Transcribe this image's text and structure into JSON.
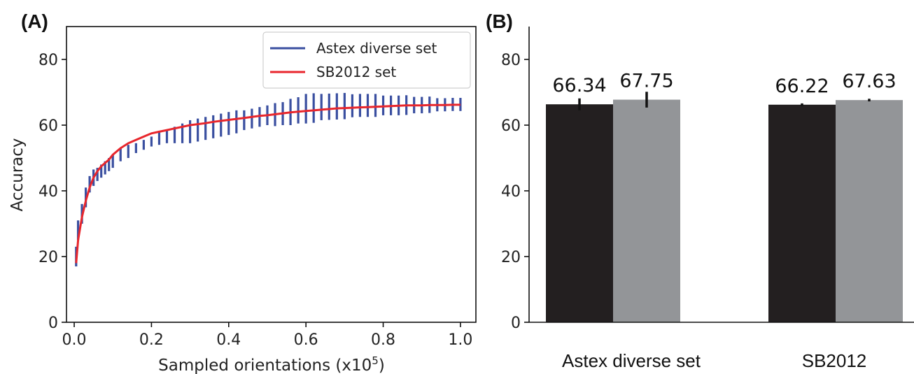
{
  "chart_data": [
    {
      "panel": "(A)",
      "type": "line",
      "xlabel": "Sampled orientations (x10",
      "xlabel_sup": "5",
      "xlabel_close": ")",
      "ylabel": "Accuracy",
      "xlim": [
        -0.02,
        1.04
      ],
      "ylim": [
        0,
        90
      ],
      "xticks": [
        "0.0",
        "0.2",
        "0.4",
        "0.6",
        "0.8",
        "1.0"
      ],
      "yticks": [
        "0",
        "20",
        "40",
        "60",
        "80"
      ],
      "grid": false,
      "legend_position": "top-right",
      "series": [
        {
          "name": "Astex diverse set",
          "color": "#3a4fa0",
          "style": "errorbar",
          "x": [
            0.005,
            0.01,
            0.02,
            0.03,
            0.04,
            0.05,
            0.06,
            0.07,
            0.08,
            0.09,
            0.1,
            0.12,
            0.14,
            0.16,
            0.18,
            0.2,
            0.22,
            0.24,
            0.26,
            0.28,
            0.3,
            0.32,
            0.34,
            0.36,
            0.38,
            0.4,
            0.42,
            0.44,
            0.46,
            0.48,
            0.5,
            0.52,
            0.54,
            0.56,
            0.58,
            0.6,
            0.62,
            0.64,
            0.66,
            0.68,
            0.7,
            0.72,
            0.74,
            0.76,
            0.78,
            0.8,
            0.82,
            0.84,
            0.86,
            0.88,
            0.9,
            0.92,
            0.94,
            0.96,
            0.98,
            1.0
          ],
          "y": [
            20,
            28,
            33,
            38,
            42,
            44,
            45,
            46,
            47,
            48,
            49,
            51,
            52,
            53,
            54,
            55,
            56,
            56.5,
            57,
            57.5,
            58,
            58.5,
            59,
            59.5,
            60,
            60.5,
            61,
            61.5,
            62,
            62.5,
            63,
            63.2,
            63.5,
            64,
            64.5,
            65,
            65.2,
            65.5,
            65.6,
            65.7,
            65.8,
            65.9,
            66,
            66,
            66,
            66,
            66,
            66,
            66.1,
            66.1,
            66.1,
            66.2,
            66.2,
            66.2,
            66.3,
            66.3
          ],
          "err": [
            3,
            3,
            3,
            3,
            2.5,
            2.5,
            2,
            2,
            2,
            2,
            2,
            2,
            2,
            1.5,
            1.5,
            1.5,
            2,
            2,
            2.5,
            3,
            3.5,
            3.5,
            3.5,
            3.5,
            3.5,
            3.5,
            3.5,
            3,
            3,
            3,
            3,
            3.5,
            3.5,
            4,
            4,
            4.5,
            4.5,
            4,
            4,
            4,
            4,
            3.5,
            3.5,
            3.5,
            3.5,
            3,
            3,
            3,
            3,
            2.5,
            2.5,
            2.5,
            2,
            2,
            2,
            2
          ]
        },
        {
          "name": "SB2012 set",
          "color": "#e8262c",
          "style": "line",
          "x": [
            0.005,
            0.01,
            0.02,
            0.03,
            0.04,
            0.05,
            0.06,
            0.07,
            0.08,
            0.09,
            0.1,
            0.12,
            0.14,
            0.16,
            0.18,
            0.2,
            0.22,
            0.24,
            0.26,
            0.28,
            0.3,
            0.32,
            0.34,
            0.36,
            0.38,
            0.4,
            0.42,
            0.44,
            0.46,
            0.48,
            0.5,
            0.52,
            0.54,
            0.56,
            0.58,
            0.6,
            0.62,
            0.64,
            0.66,
            0.68,
            0.7,
            0.72,
            0.74,
            0.76,
            0.78,
            0.8,
            0.82,
            0.84,
            0.86,
            0.88,
            0.9,
            0.92,
            0.94,
            0.96,
            0.98,
            1.0
          ],
          "y": [
            18,
            25,
            32,
            37,
            41,
            44,
            46,
            47.5,
            48.5,
            49.5,
            51,
            53,
            54.5,
            55.5,
            56.5,
            57.5,
            58,
            58.5,
            59,
            59.5,
            60,
            60.3,
            60.6,
            61,
            61.3,
            61.6,
            61.9,
            62.2,
            62.5,
            62.8,
            63,
            63.3,
            63.6,
            63.9,
            64.1,
            64.3,
            64.5,
            64.7,
            64.9,
            65.1,
            65.2,
            65.3,
            65.4,
            65.5,
            65.6,
            65.7,
            65.8,
            65.9,
            66,
            66,
            66,
            66.1,
            66.1,
            66.1,
            66.2,
            66.2
          ]
        }
      ]
    },
    {
      "panel": "(B)",
      "type": "bar",
      "categories": [
        "Astex diverse set",
        "SB2012"
      ],
      "ylim": [
        0,
        90
      ],
      "yticks": [
        "0",
        "20",
        "40",
        "60",
        "80"
      ],
      "grid": false,
      "series": [
        {
          "color": "#231f20",
          "values": [
            66.34,
            66.22
          ],
          "err": [
            1.8,
            0.4
          ],
          "labels": [
            "66.34",
            "66.22"
          ]
        },
        {
          "color": "#939598",
          "values": [
            67.75,
            67.63
          ],
          "err": [
            2.4,
            0.4
          ],
          "labels": [
            "67.75",
            "67.63"
          ]
        }
      ]
    }
  ]
}
